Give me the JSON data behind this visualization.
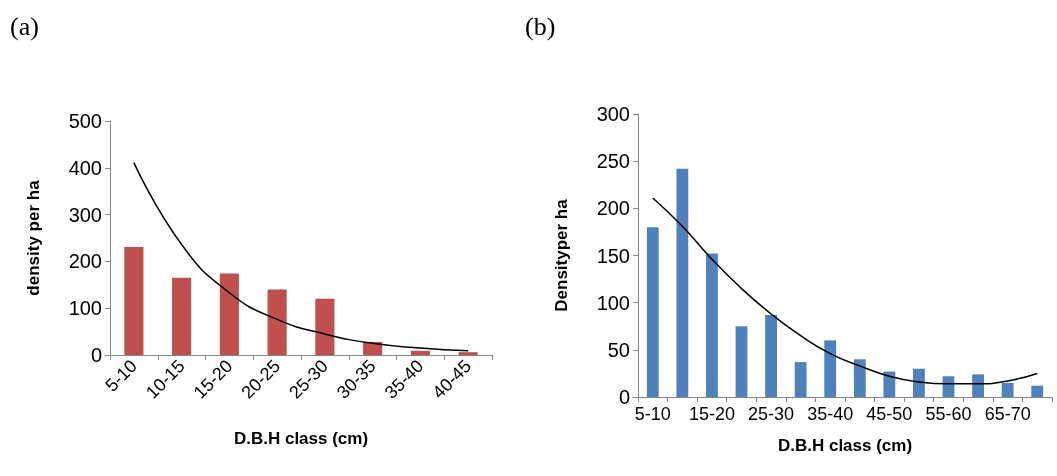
{
  "chart_data": [
    {
      "type": "bar",
      "title": "(a)",
      "xlabel": "D.B.H class (cm)",
      "ylabel": "density per ha",
      "categories": [
        "5-10",
        "10-15",
        "15-20",
        "20-25",
        "25-30",
        "30-35",
        "35-40",
        "40-45"
      ],
      "series": [
        {
          "color": "#c0504d",
          "values": [
            231,
            165,
            174,
            140,
            120,
            28,
            9,
            6
          ]
        },
        {
          "type": "line",
          "color": "#000000",
          "values": [
            411,
            236,
            133,
            76,
            45,
            25,
            15,
            9
          ]
        }
      ],
      "ylim": [
        0,
        500
      ],
      "yticks": [
        0,
        100,
        200,
        300,
        400,
        500
      ],
      "grid": false,
      "marker": "none"
    },
    {
      "type": "bar",
      "title": "(b)",
      "xlabel": "D.B.H class (cm)",
      "ylabel": "Densityper ha",
      "categories": [
        "5-10",
        null,
        "15-20",
        null,
        "25-30",
        null,
        "35-40",
        null,
        "45-50",
        null,
        "55-60",
        null,
        "65-70",
        null
      ],
      "series": [
        {
          "color": "#4f81bd",
          "values": [
            180,
            242,
            152,
            75,
            87,
            37,
            60,
            40,
            27,
            30,
            22,
            24,
            15,
            12
          ]
        },
        {
          "type": "line",
          "color": "#000000",
          "values": [
            211,
            181,
            146,
            115,
            88,
            65,
            46,
            33,
            22,
            16,
            14,
            14,
            17,
            25
          ]
        }
      ],
      "ylim": [
        0,
        300
      ],
      "yticks": [
        0,
        50,
        100,
        150,
        200,
        250,
        300
      ],
      "grid": false,
      "marker": "none"
    }
  ]
}
